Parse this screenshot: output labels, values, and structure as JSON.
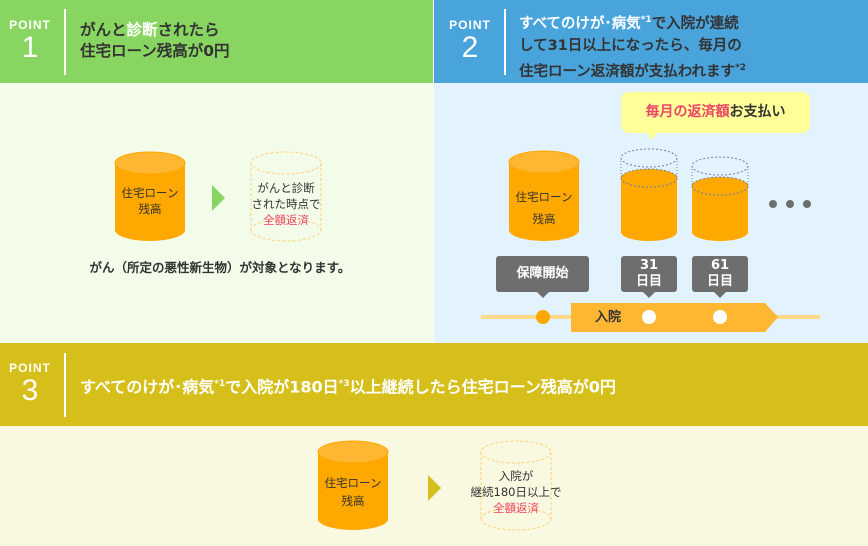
{
  "colors": {
    "point1": "#88d661",
    "point1_bg": "#f3fce9",
    "point2": "#4aa4dc",
    "point2_bg": "#e2f3fd",
    "point3": "#d6bf1b",
    "point3_bg": "#f9f8e0",
    "cylinder": "#ffa800",
    "cylinder_top": "#ffb733",
    "emphasis": "#ee4468"
  },
  "point1": {
    "word": "POINT",
    "num": "1",
    "title_a": "がんと",
    "title_hl": "診断",
    "title_b": "されたら",
    "title_line2": "住宅ローン残高が0円",
    "cyl_label1": "住宅ローン",
    "cyl_label2": "残高",
    "after_l1": "がんと診断",
    "after_l2": "された時点で",
    "after_l3": "全額返済",
    "caption": "がん（所定の悪性新生物）が対象となります。"
  },
  "point2": {
    "word": "POINT",
    "num": "2",
    "title_l1a": "すべてのけが･病気",
    "title_l1sup": "*1",
    "title_l1b": "で入院が連続",
    "title_l2": "して31日以上になったら、毎月の",
    "title_l3": "住宅ローン返済額が支払われます",
    "title_l3sup": "*2",
    "bubble_red": "毎月の返済額",
    "bubble_rest": "お支払い",
    "cyl_label1": "住宅ローン",
    "cyl_label2": "残高",
    "label_start": "保障開始",
    "label_31a": "31",
    "label_31b": "日目",
    "label_61a": "61",
    "label_61b": "日目",
    "timeline": "入院"
  },
  "point3": {
    "word": "POINT",
    "num": "3",
    "title_a": "すべてのけが･病気",
    "sup1": "*1",
    "title_b": "で入院が180日",
    "sup3": "*3",
    "title_c": "以上継続したら住宅ローン残高が0円",
    "cyl_label1": "住宅ローン",
    "cyl_label2": "残高",
    "after_l1": "入院が",
    "after_l2": "継続180日以上で",
    "after_l3": "全額返済"
  }
}
